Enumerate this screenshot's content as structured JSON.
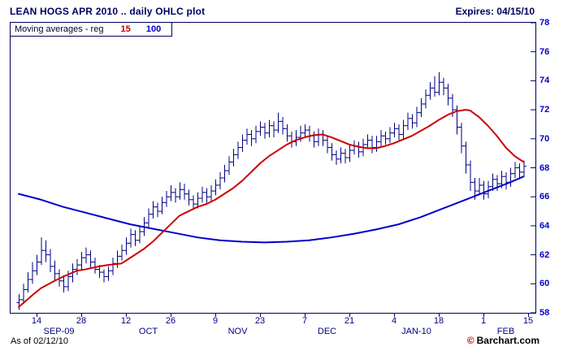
{
  "header": {
    "title": "LEAN HOGS APR 2010 .. daily OHLC plot",
    "expires": "Expires: 04/15/10"
  },
  "legend": {
    "label": "Moving averages - reg",
    "ma1": "15",
    "ma2": "100"
  },
  "footer": {
    "as_of": "As of 02/12/10",
    "copyright_symbol": "©",
    "copyright": "Barchart.com"
  },
  "colors": {
    "frame": "#000060",
    "title_text": "#000060",
    "bar": "#000080",
    "ma1": "#cc0000",
    "ma2": "#0000cc",
    "y_axis_text": "#0000cc",
    "x_axis_text": "#000080",
    "copyright_symbol": "#aa0000"
  },
  "chart_data": {
    "type": "ohlc",
    "title": "LEAN HOGS APR 2010 .. daily OHLC plot",
    "xlabel": "",
    "ylabel": "",
    "ylim": [
      58,
      78
    ],
    "grid": false,
    "legend_position": "top-left",
    "y_ticks": [
      58,
      60,
      62,
      64,
      66,
      68,
      70,
      72,
      74,
      76,
      78
    ],
    "x_ticks": [
      {
        "idx": 4,
        "label": "14"
      },
      {
        "idx": 14,
        "label": "28"
      },
      {
        "idx": 24,
        "label": "12"
      },
      {
        "idx": 34,
        "label": "26"
      },
      {
        "idx": 44,
        "label": "9"
      },
      {
        "idx": 54,
        "label": "23"
      },
      {
        "idx": 64,
        "label": "7"
      },
      {
        "idx": 74,
        "label": "21"
      },
      {
        "idx": 84,
        "label": "4"
      },
      {
        "idx": 94,
        "label": "18"
      },
      {
        "idx": 104,
        "label": "1"
      },
      {
        "idx": 114,
        "label": "15"
      }
    ],
    "month_labels": [
      {
        "idx": 9,
        "label": "SEP-09"
      },
      {
        "idx": 29,
        "label": "OCT"
      },
      {
        "idx": 49,
        "label": "NOV"
      },
      {
        "idx": 69,
        "label": "DEC"
      },
      {
        "idx": 89,
        "label": "JAN-10"
      },
      {
        "idx": 109,
        "label": "FEB"
      }
    ],
    "bars": [
      [
        58.7,
        59.3,
        58.2,
        58.9
      ],
      [
        58.9,
        60.0,
        58.6,
        59.6
      ],
      [
        59.6,
        60.8,
        59.4,
        60.3
      ],
      [
        60.3,
        61.5,
        60.0,
        60.9
      ],
      [
        60.9,
        62.0,
        60.6,
        61.5
      ],
      [
        61.5,
        63.2,
        61.3,
        62.3
      ],
      [
        62.3,
        63.0,
        61.5,
        62.0
      ],
      [
        62.0,
        62.4,
        60.8,
        61.2
      ],
      [
        61.2,
        61.6,
        60.2,
        60.7
      ],
      [
        60.7,
        61.0,
        59.8,
        60.2
      ],
      [
        60.2,
        60.6,
        59.4,
        59.8
      ],
      [
        59.8,
        60.9,
        59.5,
        60.5
      ],
      [
        60.5,
        61.4,
        60.1,
        61.0
      ],
      [
        61.0,
        61.7,
        60.6,
        61.3
      ],
      [
        61.3,
        62.2,
        61.0,
        61.8
      ],
      [
        61.8,
        62.5,
        61.4,
        62.0
      ],
      [
        62.0,
        62.3,
        61.1,
        61.5
      ],
      [
        61.5,
        61.8,
        60.7,
        61.0
      ],
      [
        61.0,
        61.3,
        60.4,
        60.8
      ],
      [
        60.8,
        61.0,
        60.1,
        60.5
      ],
      [
        60.5,
        61.2,
        60.2,
        60.9
      ],
      [
        60.9,
        61.8,
        60.6,
        61.4
      ],
      [
        61.4,
        62.3,
        61.1,
        61.9
      ],
      [
        61.9,
        62.7,
        61.6,
        62.3
      ],
      [
        62.3,
        63.2,
        62.0,
        62.8
      ],
      [
        62.8,
        63.8,
        62.5,
        63.4
      ],
      [
        63.4,
        63.7,
        62.6,
        63.0
      ],
      [
        63.0,
        64.0,
        62.8,
        63.6
      ],
      [
        63.6,
        64.6,
        63.3,
        64.2
      ],
      [
        64.2,
        65.2,
        63.9,
        64.8
      ],
      [
        64.8,
        65.7,
        64.5,
        65.3
      ],
      [
        65.3,
        65.6,
        64.6,
        65.0
      ],
      [
        65.0,
        66.0,
        64.8,
        65.6
      ],
      [
        65.6,
        66.4,
        65.3,
        66.0
      ],
      [
        66.0,
        66.8,
        65.7,
        66.3
      ],
      [
        66.3,
        66.6,
        65.6,
        66.0
      ],
      [
        66.0,
        67.0,
        65.8,
        66.5
      ],
      [
        66.5,
        66.9,
        65.8,
        66.2
      ],
      [
        66.2,
        66.5,
        65.4,
        65.8
      ],
      [
        65.8,
        66.1,
        65.1,
        65.5
      ],
      [
        65.5,
        66.3,
        65.2,
        65.9
      ],
      [
        65.9,
        66.7,
        65.6,
        66.3
      ],
      [
        66.3,
        66.6,
        65.6,
        66.0
      ],
      [
        66.0,
        66.8,
        65.7,
        66.4
      ],
      [
        66.4,
        67.2,
        66.1,
        66.8
      ],
      [
        66.8,
        67.7,
        66.5,
        67.3
      ],
      [
        67.3,
        68.2,
        67.0,
        67.8
      ],
      [
        67.8,
        68.8,
        67.5,
        68.4
      ],
      [
        68.4,
        69.3,
        68.1,
        68.9
      ],
      [
        68.9,
        69.8,
        68.6,
        69.4
      ],
      [
        69.4,
        70.3,
        69.1,
        69.9
      ],
      [
        69.9,
        70.7,
        69.6,
        70.3
      ],
      [
        70.3,
        70.6,
        69.5,
        70.0
      ],
      [
        70.0,
        70.9,
        69.7,
        70.5
      ],
      [
        70.5,
        71.2,
        70.2,
        70.8
      ],
      [
        70.8,
        71.1,
        70.0,
        70.4
      ],
      [
        70.4,
        71.3,
        70.1,
        70.9
      ],
      [
        70.9,
        71.2,
        70.1,
        70.6
      ],
      [
        70.6,
        71.8,
        70.4,
        71.2
      ],
      [
        71.2,
        71.5,
        70.3,
        70.7
      ],
      [
        70.7,
        71.0,
        69.8,
        70.2
      ],
      [
        70.2,
        70.5,
        69.4,
        69.8
      ],
      [
        69.8,
        70.6,
        69.5,
        70.1
      ],
      [
        70.1,
        70.9,
        69.8,
        70.4
      ],
      [
        70.4,
        71.0,
        70.1,
        70.6
      ],
      [
        70.6,
        70.9,
        69.8,
        70.2
      ],
      [
        70.2,
        70.5,
        69.4,
        69.8
      ],
      [
        69.8,
        70.7,
        69.5,
        70.3
      ],
      [
        70.3,
        70.6,
        69.5,
        69.9
      ],
      [
        69.9,
        70.2,
        69.0,
        69.4
      ],
      [
        69.4,
        69.7,
        68.5,
        68.9
      ],
      [
        68.9,
        69.2,
        68.2,
        68.6
      ],
      [
        68.6,
        69.4,
        68.3,
        69.0
      ],
      [
        69.0,
        69.3,
        68.3,
        68.7
      ],
      [
        68.7,
        69.6,
        68.4,
        69.2
      ],
      [
        69.2,
        69.9,
        68.9,
        69.5
      ],
      [
        69.5,
        69.8,
        68.7,
        69.1
      ],
      [
        69.1,
        70.0,
        68.8,
        69.6
      ],
      [
        69.6,
        70.3,
        69.3,
        69.9
      ],
      [
        69.9,
        70.2,
        69.0,
        69.4
      ],
      [
        69.4,
        70.2,
        69.1,
        69.8
      ],
      [
        69.8,
        70.6,
        69.5,
        70.2
      ],
      [
        70.2,
        70.5,
        69.6,
        70.0
      ],
      [
        70.0,
        70.8,
        69.7,
        70.4
      ],
      [
        70.4,
        71.1,
        70.1,
        70.7
      ],
      [
        70.7,
        71.0,
        69.9,
        70.3
      ],
      [
        70.3,
        71.3,
        70.0,
        70.9
      ],
      [
        70.9,
        71.8,
        70.6,
        71.4
      ],
      [
        71.4,
        71.7,
        70.7,
        71.1
      ],
      [
        71.1,
        72.2,
        70.8,
        71.8
      ],
      [
        71.8,
        72.8,
        71.5,
        72.4
      ],
      [
        72.4,
        73.4,
        72.1,
        73.0
      ],
      [
        73.0,
        73.9,
        72.7,
        73.5
      ],
      [
        73.5,
        74.3,
        72.9,
        73.2
      ],
      [
        73.2,
        74.6,
        73.0,
        73.9
      ],
      [
        73.9,
        74.2,
        73.0,
        73.5
      ],
      [
        73.5,
        73.8,
        72.3,
        72.8
      ],
      [
        72.8,
        73.1,
        71.5,
        72.0
      ],
      [
        72.0,
        72.3,
        70.3,
        70.8
      ],
      [
        70.8,
        71.1,
        69.0,
        69.5
      ],
      [
        69.5,
        69.8,
        67.6,
        68.2
      ],
      [
        68.2,
        68.5,
        66.4,
        67.0
      ],
      [
        67.0,
        67.3,
        65.8,
        66.4
      ],
      [
        66.4,
        67.3,
        66.1,
        66.8
      ],
      [
        66.8,
        67.1,
        65.8,
        66.2
      ],
      [
        66.2,
        67.1,
        65.9,
        66.7
      ],
      [
        66.7,
        67.6,
        66.4,
        67.2
      ],
      [
        67.2,
        67.5,
        66.4,
        66.9
      ],
      [
        66.9,
        67.8,
        66.6,
        67.4
      ],
      [
        67.4,
        67.7,
        66.5,
        67.0
      ],
      [
        67.0,
        68.0,
        66.7,
        67.6
      ],
      [
        67.6,
        68.4,
        67.3,
        68.0
      ],
      [
        68.0,
        68.3,
        67.2,
        67.7
      ],
      [
        67.7,
        68.5,
        67.4,
        68.1
      ]
    ],
    "ma15": [
      [
        0,
        58.4
      ],
      [
        3,
        59.2
      ],
      [
        5,
        59.7
      ],
      [
        8,
        60.2
      ],
      [
        10,
        60.5
      ],
      [
        13,
        60.9
      ],
      [
        15,
        61.0
      ],
      [
        18,
        61.2
      ],
      [
        20,
        61.3
      ],
      [
        23,
        61.4
      ],
      [
        26,
        62.0
      ],
      [
        28,
        62.4
      ],
      [
        30,
        62.9
      ],
      [
        33,
        63.8
      ],
      [
        36,
        64.7
      ],
      [
        38,
        65.0
      ],
      [
        40,
        65.3
      ],
      [
        42,
        65.5
      ],
      [
        44,
        65.8
      ],
      [
        46,
        66.2
      ],
      [
        48,
        66.6
      ],
      [
        50,
        67.1
      ],
      [
        52,
        67.7
      ],
      [
        54,
        68.3
      ],
      [
        56,
        68.8
      ],
      [
        58,
        69.2
      ],
      [
        60,
        69.6
      ],
      [
        62,
        69.9
      ],
      [
        64,
        70.1
      ],
      [
        66,
        70.25
      ],
      [
        68,
        70.3
      ],
      [
        70,
        70.1
      ],
      [
        72,
        69.85
      ],
      [
        74,
        69.6
      ],
      [
        76,
        69.45
      ],
      [
        78,
        69.35
      ],
      [
        80,
        69.35
      ],
      [
        82,
        69.5
      ],
      [
        84,
        69.7
      ],
      [
        86,
        69.95
      ],
      [
        88,
        70.2
      ],
      [
        90,
        70.55
      ],
      [
        92,
        70.9
      ],
      [
        94,
        71.3
      ],
      [
        96,
        71.65
      ],
      [
        98,
        71.9
      ],
      [
        100,
        72.0
      ],
      [
        101,
        71.95
      ],
      [
        103,
        71.5
      ],
      [
        105,
        70.9
      ],
      [
        107,
        70.2
      ],
      [
        109,
        69.4
      ],
      [
        111,
        68.8
      ],
      [
        113,
        68.4
      ]
    ],
    "ma100": [
      [
        0,
        66.2
      ],
      [
        5,
        65.8
      ],
      [
        10,
        65.3
      ],
      [
        15,
        64.9
      ],
      [
        20,
        64.5
      ],
      [
        25,
        64.1
      ],
      [
        30,
        63.8
      ],
      [
        35,
        63.5
      ],
      [
        40,
        63.2
      ],
      [
        45,
        63.0
      ],
      [
        50,
        62.9
      ],
      [
        55,
        62.85
      ],
      [
        60,
        62.9
      ],
      [
        65,
        63.0
      ],
      [
        70,
        63.2
      ],
      [
        75,
        63.45
      ],
      [
        80,
        63.75
      ],
      [
        85,
        64.1
      ],
      [
        90,
        64.6
      ],
      [
        95,
        65.2
      ],
      [
        100,
        65.8
      ],
      [
        105,
        66.4
      ],
      [
        110,
        67.0
      ],
      [
        113,
        67.4
      ]
    ]
  }
}
